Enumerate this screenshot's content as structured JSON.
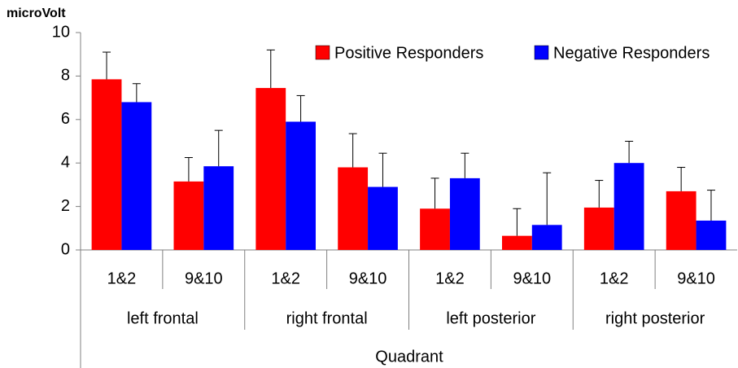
{
  "chart_data": {
    "type": "bar",
    "y_label": "microVolt",
    "x_label": "Quadrant",
    "categories": [
      "1&2",
      "9&10",
      "1&2",
      "9&10",
      "1&2",
      "9&10",
      "1&2",
      "9&10"
    ],
    "groups": [
      "left frontal",
      "right frontal",
      "left posterior",
      "right posterior"
    ],
    "series": [
      {
        "name": "Positive Responders",
        "color": "#ff0000",
        "values": [
          7.85,
          3.15,
          7.45,
          3.8,
          1.9,
          0.65,
          1.95,
          2.7
        ],
        "errors": [
          1.25,
          1.1,
          1.75,
          1.55,
          1.4,
          1.25,
          1.25,
          1.1
        ]
      },
      {
        "name": "Negative Responders",
        "color": "#0000ff",
        "values": [
          6.8,
          3.85,
          5.9,
          2.9,
          3.3,
          1.15,
          4.0,
          1.35
        ],
        "errors": [
          0.85,
          1.65,
          1.2,
          1.55,
          1.15,
          2.4,
          1.0,
          1.4
        ]
      }
    ],
    "ylim": [
      0,
      10
    ],
    "yticks": [
      0,
      2,
      4,
      6,
      8,
      10
    ],
    "grid": false,
    "legend": "top-right"
  }
}
